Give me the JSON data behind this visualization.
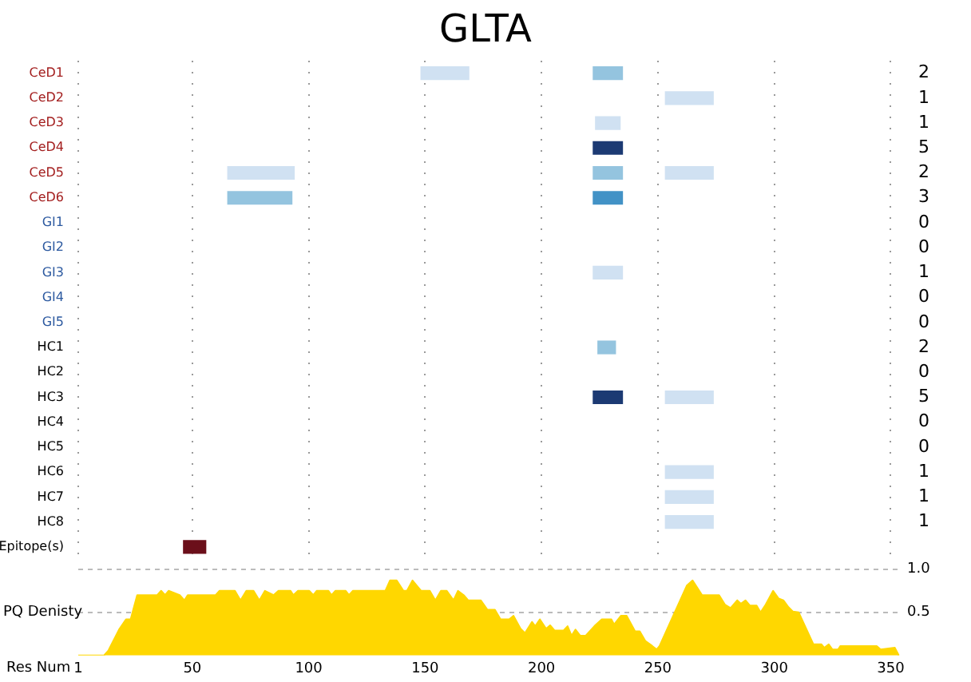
{
  "chart_data": [
    {
      "type": "bar",
      "orientation": "horizontal",
      "title": "GLTA",
      "categories": [
        "CeD1",
        "CeD2",
        "CeD3",
        "CeD4",
        "CeD5",
        "CeD6",
        "GI1",
        "GI2",
        "GI3",
        "GI4",
        "GI5",
        "HC1",
        "HC2",
        "HC3",
        "HC4",
        "HC5",
        "HC6",
        "HC7",
        "HC8",
        "Epitope(s)"
      ],
      "series": [
        {
          "color": "#94c4df",
          "base": [
            null,
            null,
            null,
            null,
            65,
            65,
            null,
            null,
            null,
            null,
            null,
            null,
            null,
            null,
            null,
            null,
            null,
            null,
            null,
            null
          ],
          "values": [
            null,
            null,
            null,
            null,
            29,
            28,
            null,
            null,
            null,
            null,
            null,
            null,
            null,
            null,
            null,
            null,
            null,
            null,
            null,
            null
          ],
          "colors": [
            null,
            null,
            null,
            null,
            "#d0e1f2",
            "#94c4df",
            null,
            null,
            null,
            null,
            null,
            null,
            null,
            null,
            null,
            null,
            null,
            null,
            null,
            null
          ]
        },
        {
          "color": "#d0e1f2",
          "base": [
            148,
            null,
            null,
            null,
            null,
            null,
            null,
            null,
            null,
            null,
            null,
            null,
            null,
            null,
            null,
            null,
            null,
            null,
            null,
            null
          ],
          "values": [
            21,
            null,
            null,
            null,
            null,
            null,
            null,
            null,
            null,
            null,
            null,
            null,
            null,
            null,
            null,
            null,
            null,
            null,
            null,
            null
          ]
        },
        {
          "color": "#94c4df",
          "base": [
            222,
            null,
            223,
            222,
            222,
            222,
            null,
            null,
            222,
            null,
            null,
            224,
            null,
            222,
            null,
            null,
            null,
            null,
            null,
            null
          ],
          "values": [
            13,
            null,
            11,
            13,
            13,
            13,
            null,
            null,
            13,
            null,
            null,
            8,
            null,
            13,
            null,
            null,
            null,
            null,
            null,
            null
          ],
          "colors": [
            "#94c4df",
            null,
            "#d0e1f2",
            "#1c3a73",
            "#94c4df",
            "#4292c6",
            null,
            null,
            "#d0e1f2",
            null,
            null,
            "#94c4df",
            null,
            "#1c3a73",
            null,
            null,
            null,
            null,
            null,
            null
          ]
        },
        {
          "color": "#d0e1f2",
          "base": [
            null,
            253,
            null,
            null,
            253,
            null,
            null,
            null,
            null,
            null,
            null,
            null,
            null,
            253,
            null,
            null,
            253,
            253,
            253,
            null
          ],
          "values": [
            null,
            21,
            null,
            null,
            21,
            null,
            null,
            null,
            null,
            null,
            null,
            null,
            null,
            21,
            null,
            null,
            21,
            21,
            21,
            null
          ]
        },
        {
          "color": "#6b0f1a",
          "base": [
            null,
            null,
            null,
            null,
            null,
            null,
            null,
            null,
            null,
            null,
            null,
            null,
            null,
            null,
            null,
            null,
            null,
            null,
            null,
            46
          ],
          "values": [
            null,
            null,
            null,
            null,
            null,
            null,
            null,
            null,
            null,
            null,
            null,
            null,
            null,
            null,
            null,
            null,
            null,
            null,
            null,
            10
          ]
        }
      ],
      "xticks": [
        1,
        50,
        100,
        150,
        200,
        250,
        300,
        350
      ],
      "grid": "x",
      "tick_labels": "y",
      "annotations": [
        "2",
        "1",
        "1",
        "5",
        "2",
        "3",
        "0",
        "0",
        "1",
        "0",
        "0",
        "2",
        "0",
        "5",
        "0",
        "0",
        "1",
        "1",
        "1"
      ]
    },
    {
      "type": "area",
      "ylabel": "PQ Denisty",
      "xlabel": "Res Num",
      "color": "#ffd700",
      "x": [
        1,
        12,
        14,
        18.5,
        21.5,
        23.5,
        26.3,
        34.9,
        36.6,
        38.3,
        39.8,
        44.6,
        46.6,
        48,
        60,
        61.7,
        68.3,
        70.7,
        73.2,
        76.3,
        78.8,
        81.2,
        84.9,
        87,
        92.2,
        93.4,
        95.4,
        100.2,
        102,
        103.4,
        108.5,
        109.8,
        111.5,
        115.9,
        117.3,
        119,
        132.9,
        134.9,
        137.8,
        140.7,
        142.2,
        144.6,
        148.3,
        152,
        154.4,
        156.8,
        159.3,
        162.2,
        164.1,
        166.6,
        168.5,
        173.9,
        176.8,
        180,
        182.4,
        186.1,
        188,
        191,
        192.9,
        195.9,
        197.3,
        199.3,
        202,
        203.7,
        205.6,
        209.5,
        211.2,
        212.9,
        214.6,
        216.6,
        219,
        222.7,
        225.9,
        230,
        231.2,
        234.1,
        236.6,
        240.2,
        242.2,
        244.6,
        247.6,
        249.5,
        250.7,
        262.4,
        264.9,
        269,
        276.3,
        278.8,
        281.2,
        284.1,
        285.6,
        287.6,
        289.5,
        292.4,
        294.1,
        296.3,
        299.5,
        301.9,
        303.9,
        306.1,
        308,
        310.5,
        316.8,
        320.2,
        321.5,
        323.4,
        325,
        327.4,
        328.4,
        344,
        345.7,
        351.8,
        353.5
      ],
      "values": [
        0,
        0,
        0.06,
        0.3,
        0.42,
        0.42,
        0.7,
        0.7,
        0.75,
        0.7,
        0.75,
        0.7,
        0.64,
        0.7,
        0.7,
        0.75,
        0.75,
        0.64,
        0.75,
        0.75,
        0.64,
        0.75,
        0.7,
        0.75,
        0.75,
        0.7,
        0.75,
        0.75,
        0.7,
        0.75,
        0.75,
        0.7,
        0.75,
        0.75,
        0.7,
        0.75,
        0.75,
        0.87,
        0.87,
        0.75,
        0.75,
        0.87,
        0.75,
        0.75,
        0.64,
        0.75,
        0.75,
        0.64,
        0.75,
        0.7,
        0.64,
        0.64,
        0.53,
        0.53,
        0.42,
        0.42,
        0.46,
        0.31,
        0.26,
        0.39,
        0.34,
        0.42,
        0.31,
        0.35,
        0.29,
        0.29,
        0.34,
        0.23,
        0.3,
        0.23,
        0.23,
        0.34,
        0.42,
        0.42,
        0.36,
        0.46,
        0.46,
        0.28,
        0.28,
        0.17,
        0.11,
        0.07,
        0.11,
        0.81,
        0.87,
        0.7,
        0.7,
        0.59,
        0.55,
        0.64,
        0.6,
        0.64,
        0.58,
        0.58,
        0.5,
        0.59,
        0.75,
        0.66,
        0.64,
        0.56,
        0.51,
        0.5,
        0.13,
        0.13,
        0.09,
        0.13,
        0.07,
        0.07,
        0.11,
        0.11,
        0.07,
        0.09,
        0
      ],
      "xlim": [
        1,
        355
      ],
      "xticks": [
        1,
        50,
        100,
        150,
        200,
        250,
        300,
        350
      ],
      "ylim": [
        0,
        1
      ],
      "yticks": [
        {
          "value": 0.5,
          "label": "0.5"
        },
        {
          "value": 1,
          "label": "1.0"
        }
      ],
      "grid": "y"
    }
  ]
}
